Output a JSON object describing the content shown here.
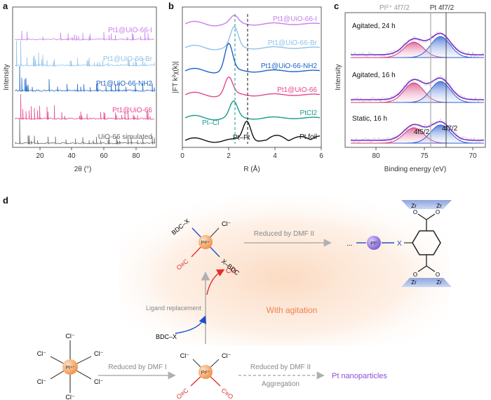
{
  "panels": {
    "a": {
      "label": "a",
      "xlabel": "2θ (°)",
      "ylabel": "Intensity",
      "xticks": [
        "20",
        "40",
        "60",
        "80"
      ],
      "series": [
        {
          "name": "Pt1@UiO-66-I",
          "color": "#c77ee8"
        },
        {
          "name": "Pt1@UiO-66-Br",
          "color": "#8fc3ea"
        },
        {
          "name": "Pt1@UiO-66-NH2",
          "color": "#1e64c6"
        },
        {
          "name": "Pt1@UiO-66",
          "color": "#e6468e"
        },
        {
          "name": "UiO-66 simulated",
          "color": "#666666"
        }
      ]
    },
    "b": {
      "label": "b",
      "xlabel": "R (Å)",
      "ylabel": "|FT k²χ(k)|",
      "xticks": [
        "0",
        "2",
        "4",
        "6"
      ],
      "series": [
        {
          "name": "Pt1@UiO-66-I",
          "color": "#c77ee8"
        },
        {
          "name": "Pt1@UiO-66-Br",
          "color": "#8fc3ea"
        },
        {
          "name": "Pt1@UiO-66-NH2",
          "color": "#1e64c6"
        },
        {
          "name": "Pt1@UiO-66",
          "color": "#e6468e"
        },
        {
          "name": "PtCl2",
          "color": "#1a9a8c"
        },
        {
          "name": "Pt foil",
          "color": "#111111"
        }
      ],
      "annotations": [
        "Pt–Cl",
        "Pt–Pt"
      ]
    },
    "c": {
      "label": "c",
      "xlabel": "Binding energy (eV)",
      "ylabel": "Intensity",
      "xticks": [
        "80",
        "75",
        "70"
      ],
      "top_labels": [
        "Pt²⁺ 4f7/2",
        "Pt 4f7/2"
      ],
      "conditions": [
        "Agitated, 24 h",
        "Agitated, 16 h",
        "Static, 16 h"
      ],
      "peak_labels": [
        "4f5/2",
        "4f7/2"
      ]
    },
    "d": {
      "label": "d",
      "pt4_center": "Pt⁴⁺",
      "pt2_center": "Pt²⁺",
      "pt0_center": "Pt⁰",
      "cl": "Cl⁻",
      "co_ligand": "O≡C",
      "co_ligand_r": "C≡O",
      "bdc_x": "BDC–X",
      "x_bdc": "X–BDC",
      "x": "X",
      "dots": "...",
      "zr": "Zr",
      "oxygen": "O",
      "step1": "Reduced by DMF I",
      "step2": "Reduced by DMF II",
      "step3": "Reduced by DMF II",
      "aggregation": "Aggregation",
      "nanoparticles": "Pt nanoparticles",
      "ligand_replacement": "Ligand replacement",
      "co_release": "CO",
      "agitation": "With agitation"
    }
  },
  "colors": {
    "pt_orange": "#f2a15b",
    "pt_purple": "#8a6be3",
    "x_blue": "#1f4fc8",
    "co_red": "#e03030",
    "agitation": "#f07f4f",
    "nano": "#8a4fd8"
  }
}
